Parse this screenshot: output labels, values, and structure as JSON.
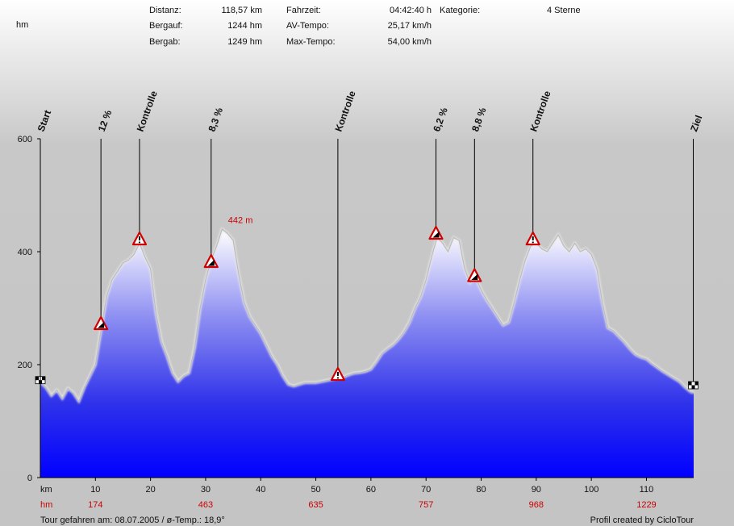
{
  "stats": {
    "col1": [
      {
        "label": "Distanz:",
        "value": "118,57 km"
      },
      {
        "label": "Bergauf:",
        "value": "1244 hm"
      },
      {
        "label": "Bergab:",
        "value": "1249 hm"
      }
    ],
    "col2": [
      {
        "label": "Fahrzeit:",
        "value": "04:42:40 h"
      },
      {
        "label": "AV-Tempo:",
        "value": "25,17 km/h"
      },
      {
        "label": "Max-Tempo:",
        "value": "54,00 km/h"
      }
    ],
    "category_label": "Kategorie:",
    "category_value": "4 Sterne"
  },
  "footer": {
    "left": "Tour gefahren am: 08.07.2005  /  ø-Temp.: 18,9°",
    "right": "Profil created by CicloTour"
  },
  "chart_data": {
    "type": "area",
    "ylabel": "hm",
    "xlabel": "km",
    "xlim": [
      0,
      118.57
    ],
    "ylim": [
      0,
      600
    ],
    "y_ticks": [
      "0",
      "200",
      "400",
      "600"
    ],
    "x_ticks": [
      "10",
      "20",
      "30",
      "40",
      "50",
      "60",
      "70",
      "80",
      "90",
      "100",
      "110"
    ],
    "hm_row_label": "hm",
    "cumulative_hm": [
      {
        "x": 10,
        "label": "174"
      },
      {
        "x": 30,
        "label": "463"
      },
      {
        "x": 50,
        "label": "635"
      },
      {
        "x": 70,
        "label": "757"
      },
      {
        "x": 90,
        "label": "968"
      },
      {
        "x": 110,
        "label": "1229"
      }
    ],
    "max_annotation": {
      "x": 33.2,
      "y": 442,
      "label": "442 m"
    },
    "markers": [
      {
        "x": 0,
        "label": "Start",
        "icon": "start-flag-icon",
        "y": 169
      },
      {
        "x": 11,
        "label": "12 %",
        "icon": "climb-warning-icon",
        "y": 270
      },
      {
        "x": 18,
        "label": "Kontrolle",
        "icon": "checkpoint-warning-icon",
        "y": 420
      },
      {
        "x": 31,
        "label": "8,3 %",
        "icon": "climb-warning-icon",
        "y": 380
      },
      {
        "x": 54,
        "label": "Kontrolle",
        "icon": "checkpoint-warning-icon",
        "y": 180
      },
      {
        "x": 71.8,
        "label": "6,2 %",
        "icon": "climb-warning-icon",
        "y": 430
      },
      {
        "x": 78.8,
        "label": "8,8 %",
        "icon": "climb-warning-icon",
        "y": 355
      },
      {
        "x": 89.4,
        "label": "Kontrolle",
        "icon": "checkpoint-warning-icon",
        "y": 420
      },
      {
        "x": 118.5,
        "label": "Ziel",
        "icon": "finish-flag-icon",
        "y": 160
      }
    ],
    "profile": [
      [
        0,
        169
      ],
      [
        1,
        160
      ],
      [
        2,
        145
      ],
      [
        3,
        155
      ],
      [
        4,
        140
      ],
      [
        5,
        158
      ],
      [
        6,
        150
      ],
      [
        7,
        135
      ],
      [
        8,
        160
      ],
      [
        9,
        180
      ],
      [
        10,
        200
      ],
      [
        11,
        260
      ],
      [
        12,
        320
      ],
      [
        13,
        350
      ],
      [
        14,
        365
      ],
      [
        15,
        380
      ],
      [
        16,
        385
      ],
      [
        17,
        395
      ],
      [
        18,
        415
      ],
      [
        19,
        390
      ],
      [
        20,
        370
      ],
      [
        21,
        290
      ],
      [
        22,
        240
      ],
      [
        23,
        215
      ],
      [
        24,
        185
      ],
      [
        25,
        170
      ],
      [
        26,
        180
      ],
      [
        27,
        185
      ],
      [
        28,
        230
      ],
      [
        29,
        300
      ],
      [
        30,
        350
      ],
      [
        31,
        385
      ],
      [
        32,
        410
      ],
      [
        33,
        440
      ],
      [
        34,
        432
      ],
      [
        35,
        420
      ],
      [
        36,
        360
      ],
      [
        37,
        310
      ],
      [
        38,
        285
      ],
      [
        39,
        270
      ],
      [
        40,
        255
      ],
      [
        41,
        235
      ],
      [
        42,
        215
      ],
      [
        43,
        200
      ],
      [
        44,
        180
      ],
      [
        45,
        165
      ],
      [
        46,
        162
      ],
      [
        47,
        165
      ],
      [
        48,
        168
      ],
      [
        49,
        168
      ],
      [
        50,
        168
      ],
      [
        51,
        170
      ],
      [
        52,
        172
      ],
      [
        53,
        174
      ],
      [
        54,
        176
      ],
      [
        55,
        178
      ],
      [
        56,
        182
      ],
      [
        57,
        185
      ],
      [
        58,
        186
      ],
      [
        59,
        188
      ],
      [
        60,
        192
      ],
      [
        61,
        205
      ],
      [
        62,
        220
      ],
      [
        63,
        228
      ],
      [
        64,
        235
      ],
      [
        65,
        245
      ],
      [
        66,
        258
      ],
      [
        67,
        275
      ],
      [
        68,
        300
      ],
      [
        69,
        320
      ],
      [
        70,
        350
      ],
      [
        71,
        390
      ],
      [
        72,
        425
      ],
      [
        73,
        415
      ],
      [
        74,
        400
      ],
      [
        75,
        425
      ],
      [
        76,
        420
      ],
      [
        77,
        370
      ],
      [
        78,
        345
      ],
      [
        79,
        355
      ],
      [
        80,
        332
      ],
      [
        81,
        315
      ],
      [
        82,
        300
      ],
      [
        83,
        285
      ],
      [
        84,
        270
      ],
      [
        85,
        275
      ],
      [
        86,
        310
      ],
      [
        87,
        350
      ],
      [
        88,
        385
      ],
      [
        89,
        410
      ],
      [
        90,
        415
      ],
      [
        91,
        405
      ],
      [
        92,
        400
      ],
      [
        93,
        415
      ],
      [
        94,
        430
      ],
      [
        95,
        410
      ],
      [
        96,
        400
      ],
      [
        97,
        415
      ],
      [
        98,
        400
      ],
      [
        99,
        405
      ],
      [
        100,
        395
      ],
      [
        101,
        370
      ],
      [
        102,
        310
      ],
      [
        103,
        265
      ],
      [
        104,
        260
      ],
      [
        105,
        250
      ],
      [
        106,
        240
      ],
      [
        107,
        228
      ],
      [
        108,
        218
      ],
      [
        109,
        213
      ],
      [
        110,
        210
      ],
      [
        111,
        202
      ],
      [
        112,
        195
      ],
      [
        113,
        188
      ],
      [
        114,
        182
      ],
      [
        115,
        176
      ],
      [
        116,
        170
      ],
      [
        117,
        160
      ],
      [
        118,
        152
      ],
      [
        118.57,
        150
      ]
    ]
  }
}
